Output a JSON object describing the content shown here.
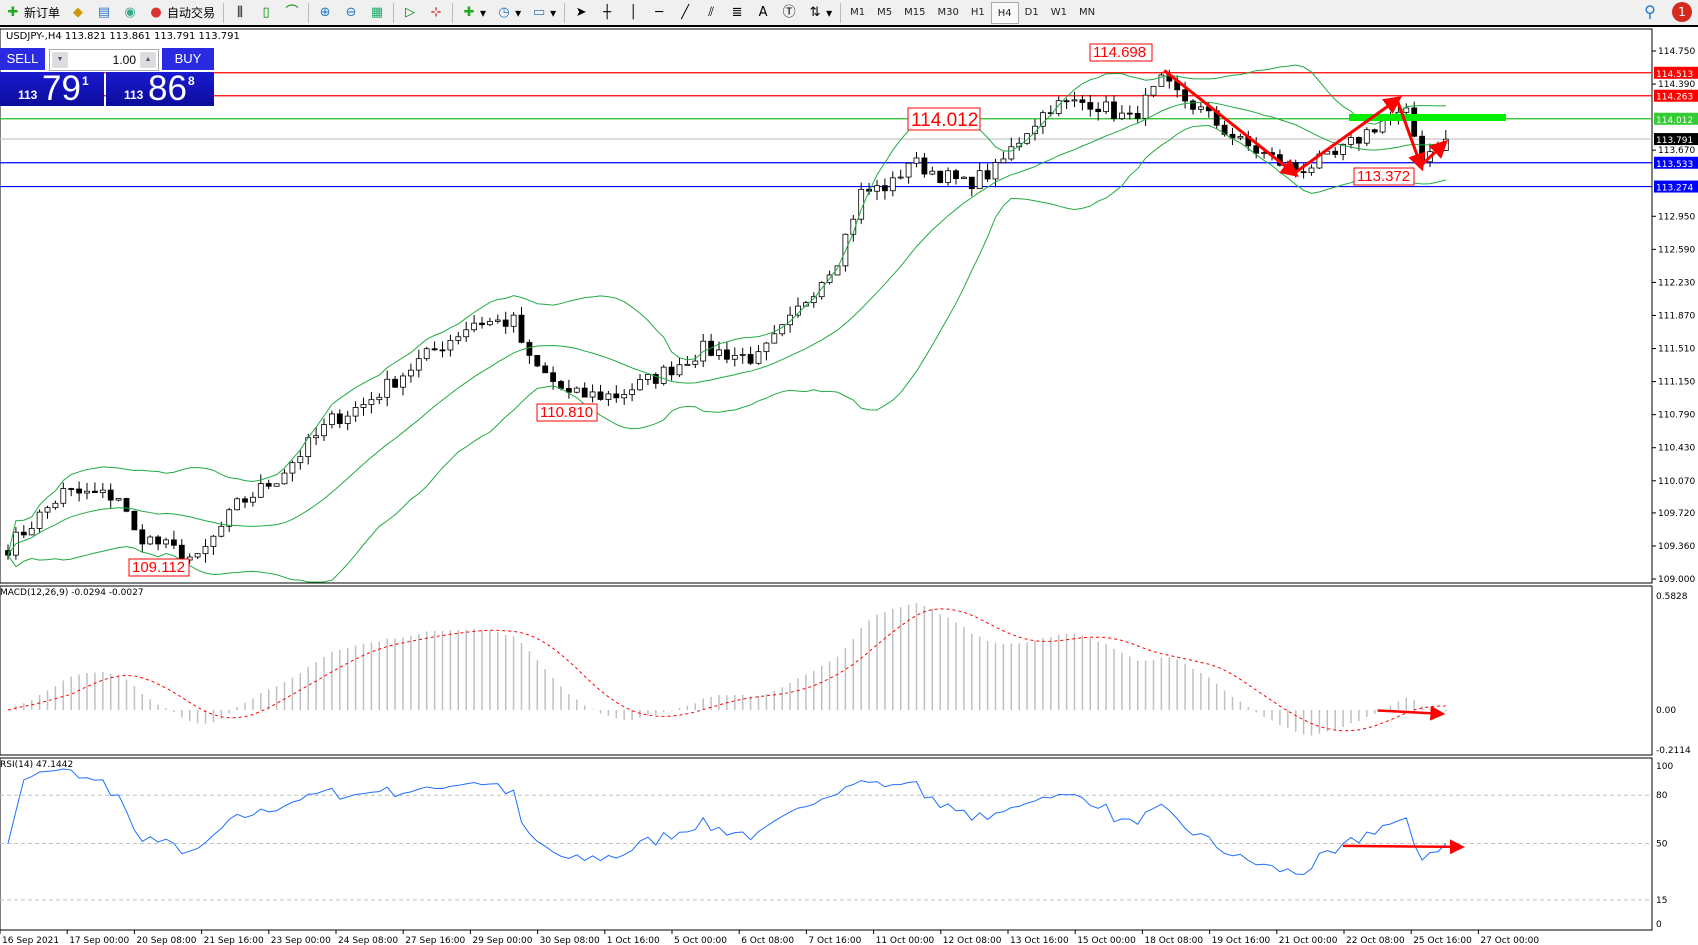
{
  "toolbar": {
    "new_order_label": "新订单",
    "auto_trading_label": "自动交易",
    "timeframes": [
      "M1",
      "M5",
      "M15",
      "M30",
      "H1",
      "H4",
      "D1",
      "W1",
      "MN"
    ],
    "active_timeframe": "H4",
    "notification_count": "1"
  },
  "chart_header": {
    "symbol_info": "USDJPY-,H4  113.821 113.861 113.791 113.791"
  },
  "trade_panel": {
    "sell_label": "SELL",
    "buy_label": "BUY",
    "lot": "1.00",
    "sell_price": {
      "prefix": "113",
      "big": "79",
      "sup": "1"
    },
    "buy_price": {
      "prefix": "113",
      "big": "86",
      "sup": "8"
    }
  },
  "price_axis": {
    "ticks": [
      "114.750",
      "114.390",
      "113.670",
      "112.950",
      "112.590",
      "112.230",
      "111.870",
      "111.510",
      "111.150",
      "110.790",
      "110.430",
      "110.070",
      "109.720",
      "109.360",
      "109.000"
    ],
    "range": [
      109.0,
      114.75
    ]
  },
  "levels": [
    {
      "value": "114.513",
      "color": "#ff0000",
      "label_bg": "#ff0000"
    },
    {
      "value": "114.263",
      "color": "#ff0000",
      "label_bg": "#ff0000"
    },
    {
      "value": "114.012",
      "color": "#22bb22",
      "label_bg": "#33cc33"
    },
    {
      "value": "113.791",
      "color": "#c0c0c0",
      "label_bg": "#000000"
    },
    {
      "value": "113.533",
      "color": "#0000ff",
      "label_bg": "#0000ff"
    },
    {
      "value": "113.274",
      "color": "#0000ff",
      "label_bg": "#0000ff"
    }
  ],
  "annotations": [
    "114.698",
    "114.012",
    "110.810",
    "109.112",
    "113.372"
  ],
  "chart_data": {
    "type": "candlestick",
    "symbol": "USDJPY-",
    "timeframe": "H4",
    "close_waypoints": [
      [
        0,
        109.35
      ],
      [
        7,
        109.94
      ],
      [
        14,
        109.9
      ],
      [
        16,
        109.5
      ],
      [
        24,
        109.2
      ],
      [
        29,
        109.8
      ],
      [
        34,
        110.1
      ],
      [
        41,
        110.73
      ],
      [
        45,
        110.9
      ],
      [
        52,
        111.37
      ],
      [
        59,
        111.8
      ],
      [
        64,
        111.8
      ],
      [
        66,
        111.37
      ],
      [
        71,
        111.0
      ],
      [
        77,
        111.0
      ],
      [
        82,
        111.2
      ],
      [
        88,
        111.5
      ],
      [
        95,
        111.4
      ],
      [
        99,
        111.8
      ],
      [
        101,
        112.05
      ],
      [
        105,
        112.5
      ],
      [
        108,
        113.2
      ],
      [
        112,
        113.3
      ],
      [
        114,
        113.55
      ],
      [
        121,
        113.3
      ],
      [
        125,
        113.45
      ],
      [
        129,
        113.9
      ],
      [
        132,
        114.15
      ],
      [
        137,
        114.2
      ],
      [
        142,
        114.0
      ],
      [
        146,
        114.4
      ],
      [
        151,
        114.1
      ],
      [
        156,
        113.75
      ],
      [
        163,
        113.45
      ],
      [
        168,
        113.6
      ],
      [
        174,
        114.0
      ],
      [
        177,
        114.05
      ],
      [
        179,
        113.6
      ],
      [
        182,
        113.79
      ]
    ],
    "x_tick_labels": [
      "16 Sep 2021",
      "17 Sep 00:00",
      "20 Sep 08:00",
      "21 Sep 16:00",
      "23 Sep 00:00",
      "24 Sep 08:00",
      "27 Sep 16:00",
      "29 Sep 00:00",
      "30 Sep 08:00",
      "1 Oct 16:00",
      "5 Oct 00:00",
      "6 Oct 08:00",
      "7 Oct 16:00",
      "11 Oct 00:00",
      "12 Oct 08:00",
      "13 Oct 16:00",
      "15 Oct 00:00",
      "18 Oct 08:00",
      "19 Oct 16:00",
      "21 Oct 00:00",
      "22 Oct 08:00",
      "25 Oct 16:00",
      "27 Oct 00:00"
    ],
    "indicators": {
      "bollinger": {
        "color": "#22aa44"
      },
      "macd": {
        "label": "MACD(12,26,9) -0.0294 -0.0027",
        "ticks": [
          "0.5828",
          "0.00",
          "-0.2114"
        ],
        "range": [
          -0.2114,
          0.5828
        ]
      },
      "rsi": {
        "label": "RSI(14) 47.1442",
        "ticks": [
          "100",
          "80",
          "50",
          "15",
          "0"
        ],
        "range": [
          0,
          100
        ],
        "levels": [
          80,
          50,
          15
        ],
        "color": "#1e6fff"
      }
    }
  }
}
